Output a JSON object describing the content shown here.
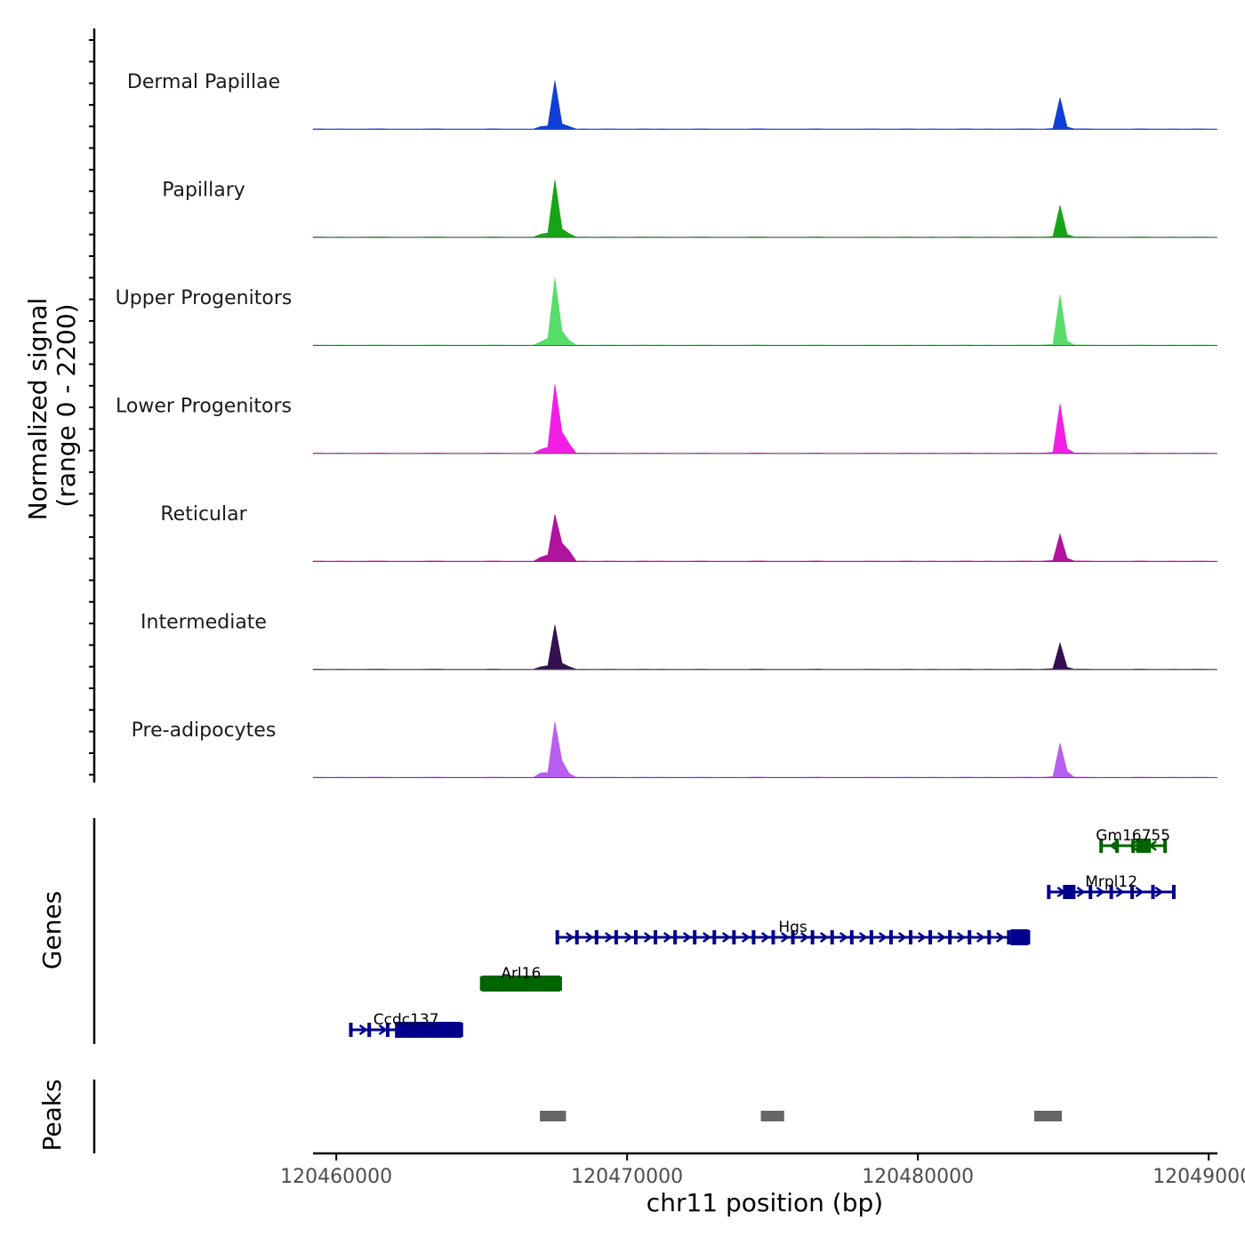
{
  "chart_data": {
    "type": "coverage-track",
    "region": {
      "chrom": "chr11",
      "start": 120459200,
      "end": 120490300
    },
    "ylabel_line1": "Normalized signal",
    "ylabel_line2": "(range 0 - 2200)",
    "ylim": [
      0,
      2200
    ],
    "xlabel": "chr11 position (bp)",
    "x_ticks": [
      120460000,
      120470000,
      120480000,
      120490000
    ],
    "x_tick_labels": [
      "120460000",
      "120470000",
      "120480000",
      "120490000"
    ],
    "peak_positions": [
      120467000,
      120467350,
      120467530,
      120467600,
      120467650,
      120467750,
      120468000,
      120484500,
      120484750,
      120484900,
      120485200
    ],
    "tracks": [
      {
        "name": "Dermal Papillae",
        "color": "#0f3fd6",
        "peaks": [
          60,
          150,
          1100,
          1250,
          200,
          110,
          60,
          200,
          70,
          750,
          90
        ]
      },
      {
        "name": "Papillary",
        "color": "#16a516",
        "peaks": [
          70,
          200,
          1300,
          1600,
          260,
          180,
          80,
          350,
          80,
          760,
          120
        ]
      },
      {
        "name": "Upper Progenitors",
        "color": "#58dd6a",
        "peaks": [
          80,
          350,
          1500,
          2200,
          520,
          300,
          110,
          420,
          100,
          1200,
          180
        ]
      },
      {
        "name": "Lower Progenitors",
        "color": "#f21ee6",
        "peaks": [
          90,
          300,
          1550,
          1900,
          700,
          460,
          220,
          430,
          110,
          1180,
          200
        ]
      },
      {
        "name": "Reticular",
        "color": "#b0139e",
        "peaks": [
          100,
          320,
          1050,
          1250,
          420,
          400,
          240,
          420,
          90,
          650,
          130
        ]
      },
      {
        "name": "Intermediate",
        "color": "#35104f",
        "peaks": [
          60,
          180,
          1000,
          1350,
          220,
          130,
          60,
          420,
          80,
          630,
          90
        ]
      },
      {
        "name": "Pre-adipocytes",
        "color": "#b95ff0",
        "peaks": [
          110,
          240,
          1250,
          1550,
          540,
          360,
          90,
          240,
          90,
          820,
          250
        ]
      }
    ],
    "genes": [
      {
        "name": "Gm16755",
        "start": 120486300,
        "end": 120488500,
        "strand": "-",
        "color": "#006400"
      },
      {
        "name": "Mrpl12",
        "start": 120484500,
        "end": 120488800,
        "strand": "+",
        "color": "#00008b"
      },
      {
        "name": "Hgs",
        "start": 120467600,
        "end": 120483800,
        "strand": "+",
        "color": "#00008b"
      },
      {
        "name": "Arl16",
        "start": 120465000,
        "end": 120467700,
        "strand": "-",
        "color": "#006400"
      },
      {
        "name": "Ccdc137",
        "start": 120460500,
        "end": 120464300,
        "strand": "+",
        "color": "#00008b"
      }
    ],
    "peaks": [
      {
        "start": 120467000,
        "end": 120467900
      },
      {
        "start": 120474600,
        "end": 120475400
      },
      {
        "start": 120484000,
        "end": 120484950
      }
    ],
    "genes_panel_label": "Genes",
    "peaks_panel_label": "Peaks",
    "colors": {
      "axis": "#000000",
      "baseline": "#555555",
      "peak": "#666666",
      "tick_text": "#4d4d4d"
    }
  }
}
